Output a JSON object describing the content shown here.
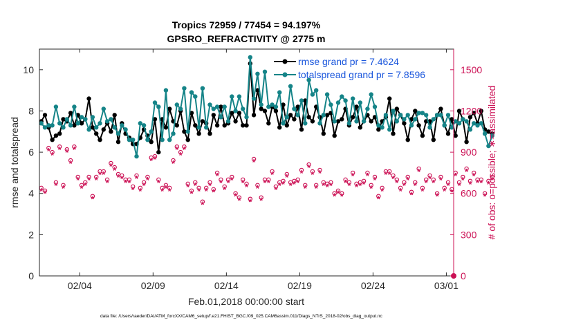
{
  "chart_data": {
    "type": "line",
    "title": [
      "Tropics 72959 / 77454 = 94.197%",
      "GPSRO_REFRACTIVITY @ 2775 m"
    ],
    "xlabel": "Feb.01,2018 00:00:00 start",
    "ylabel_left": "rmse and totalspread",
    "ylabel_right": "# of obs: o=possible; ∗=assimilated",
    "footnote": "data file: /Users/raeder/DAI/ATM_forcXX/CAM6_setup/f.e21.FHIST_BGC.f09_025.CAM6assim.011/Diags_NTrS_2018-02/obs_diag_output.nc",
    "xlim": [
      0.25,
      28.5
    ],
    "xticks": [
      3,
      8,
      13,
      18,
      23,
      28
    ],
    "xtick_labels": [
      "02/04",
      "02/09",
      "02/14",
      "02/19",
      "02/24",
      "03/01"
    ],
    "ylim_left": [
      0,
      11
    ],
    "yticks_left": [
      0,
      2,
      4,
      6,
      8,
      10
    ],
    "ylim_right": [
      0,
      1650
    ],
    "yticks_right": [
      0,
      300,
      600,
      900,
      1200,
      1500
    ],
    "colors": {
      "rmse": "#000000",
      "spread": "#158488",
      "obs": "#cc1155",
      "legend_text": "#1a56dc"
    },
    "legend": [
      {
        "name": "rmse grand pr = 7.4624",
        "color": "#000000"
      },
      {
        "name": "totalspread grand pr = 7.8596",
        "color": "#158488"
      }
    ],
    "t0": 0.375,
    "dt": 0.25,
    "series": [
      {
        "name": "rmse",
        "axis": "left",
        "values": [
          7.5,
          7.8,
          7.2,
          6.6,
          6.8,
          6.9,
          7.6,
          7.5,
          7.9,
          7.3,
          7.8,
          7.4,
          7.6,
          8.6,
          7.2,
          6.9,
          6.6,
          7.1,
          7.4,
          7.0,
          7.8,
          6.5,
          7.4,
          6.9,
          6.7,
          6.4,
          6.4,
          6.7,
          7.1,
          6.8,
          6.5,
          7.6,
          6.0,
          7.6,
          7.2,
          8.1,
          7.5,
          7.3,
          8.0,
          7.0,
          6.6,
          7.9,
          7.3,
          6.9,
          7.5,
          7.4,
          6.9,
          7.8,
          7.3,
          8.2,
          7.3,
          7.4,
          7.9,
          7.5,
          7.9,
          7.3,
          7.3,
          10.3,
          7.8,
          9.0,
          8.1,
          8.0,
          7.4,
          8.2,
          8.0,
          7.2,
          8.3,
          7.3,
          7.8,
          7.6,
          8.2,
          7.1,
          8.5,
          7.7,
          7.5,
          8.2,
          7.7,
          6.9,
          7.8,
          7.9,
          6.8,
          7.5,
          7.6,
          8.1,
          7.3,
          7.7,
          8.2,
          7.2,
          7.5,
          7.8,
          7.5,
          7.7,
          7.1,
          7.5,
          7.7,
          8.6,
          6.9,
          8.1,
          7.8,
          7.4,
          6.6,
          7.6,
          8.0,
          7.3,
          6.8,
          7.5,
          7.5,
          6.6,
          7.8,
          8.1,
          7.3,
          6.9,
          7.6,
          6.8,
          8.0,
          7.6,
          6.5,
          7.7,
          7.9,
          7.4,
          8.0,
          7.1,
          7.0,
          6.9
        ]
      },
      {
        "name": "totalspread",
        "axis": "left",
        "values": [
          7.4,
          7.2,
          7.3,
          7.3,
          8.2,
          7.4,
          7.2,
          7.6,
          7.3,
          8.2,
          7.4,
          7.7,
          7.6,
          7.1,
          7.7,
          7.2,
          7.4,
          8.1,
          7.5,
          7.6,
          7.2,
          6.9,
          7.3,
          7.1,
          6.6,
          6.6,
          5.8,
          7.4,
          7.3,
          6.6,
          7.0,
          8.4,
          8.2,
          6.6,
          9.0,
          6.6,
          6.9,
          8.3,
          8.1,
          9.1,
          7.0,
          8.9,
          8.7,
          7.2,
          9.1,
          7.2,
          8.3,
          8.1,
          8.2,
          7.7,
          8.2,
          7.5,
          8.7,
          8.0,
          8.7,
          8.1,
          7.7,
          10.6,
          8.6,
          9.8,
          8.3,
          9.9,
          8.2,
          8.3,
          8.2,
          8.9,
          7.4,
          7.7,
          9.2,
          8.1,
          7.8,
          8.5,
          7.4,
          9.5,
          8.8,
          9.0,
          7.4,
          7.8,
          8.8,
          8.3,
          7.5,
          8.4,
          8.7,
          8.5,
          7.4,
          8.6,
          7.5,
          8.4,
          7.5,
          8.1,
          8.8,
          8.2,
          7.3,
          7.2,
          7.8,
          7.1,
          8.0,
          7.5,
          7.8,
          7.6,
          7.8,
          7.3,
          7.6,
          7.9,
          7.9,
          7.8,
          7.2,
          7.6,
          7.8,
          7.8,
          7.3,
          7.8,
          7.2,
          7.5,
          7.4,
          7.6,
          7.5,
          7.1,
          7.4,
          7.3,
          7.4,
          6.9,
          6.3,
          6.8
        ]
      },
      {
        "name": "possible",
        "axis": "right",
        "marker": "o",
        "values": [
          640,
          620,
          930,
          900,
          680,
          940,
          660,
          920,
          840,
          940,
          720,
          660,
          680,
          720,
          580,
          720,
          760,
          760,
          700,
          820,
          790,
          740,
          730,
          700,
          700,
          650,
          730,
          640,
          680,
          720,
          860,
          870,
          700,
          640,
          660,
          640,
          840,
          940,
          900,
          940,
          670,
          620,
          680,
          640,
          540,
          640,
          680,
          630,
          750,
          700,
          650,
          700,
          720,
          600,
          570,
          700,
          670,
          560,
          850,
          660,
          570,
          700,
          700,
          760,
          650,
          680,
          690,
          740,
          680,
          690,
          700,
          770,
          660,
          810,
          760,
          660,
          770,
          680,
          670,
          680,
          600,
          620,
          600,
          700,
          680,
          750,
          670,
          680,
          690,
          750,
          660,
          720,
          580,
          640,
          760,
          760,
          730,
          700,
          640,
          680,
          720,
          610,
          680,
          780,
          640,
          700,
          730,
          700,
          600,
          720,
          640,
          680,
          630,
          750,
          680,
          720,
          780,
          690,
          750,
          700,
          700,
          600,
          690,
          720
        ]
      },
      {
        "name": "assimilated",
        "axis": "right",
        "marker": "*",
        "values": [
          620,
          600,
          910,
          880,
          660,
          920,
          640,
          900,
          820,
          920,
          700,
          640,
          660,
          700,
          560,
          700,
          740,
          740,
          680,
          800,
          770,
          720,
          710,
          680,
          680,
          630,
          710,
          620,
          660,
          700,
          840,
          850,
          680,
          620,
          640,
          620,
          820,
          920,
          880,
          920,
          650,
          600,
          660,
          620,
          520,
          620,
          660,
          610,
          730,
          680,
          630,
          680,
          700,
          580,
          550,
          680,
          650,
          540,
          830,
          640,
          550,
          680,
          680,
          740,
          630,
          660,
          670,
          720,
          660,
          670,
          680,
          750,
          640,
          790,
          740,
          640,
          750,
          660,
          650,
          660,
          580,
          600,
          580,
          680,
          660,
          730,
          650,
          660,
          670,
          730,
          640,
          700,
          560,
          620,
          740,
          740,
          710,
          680,
          620,
          660,
          700,
          590,
          660,
          760,
          620,
          680,
          710,
          680,
          580,
          700,
          620,
          660,
          610,
          730,
          660,
          700,
          760,
          670,
          730,
          680,
          680,
          580,
          670,
          700
        ]
      }
    ],
    "end_marker": {
      "x": 28.5,
      "y_right": 0
    }
  }
}
